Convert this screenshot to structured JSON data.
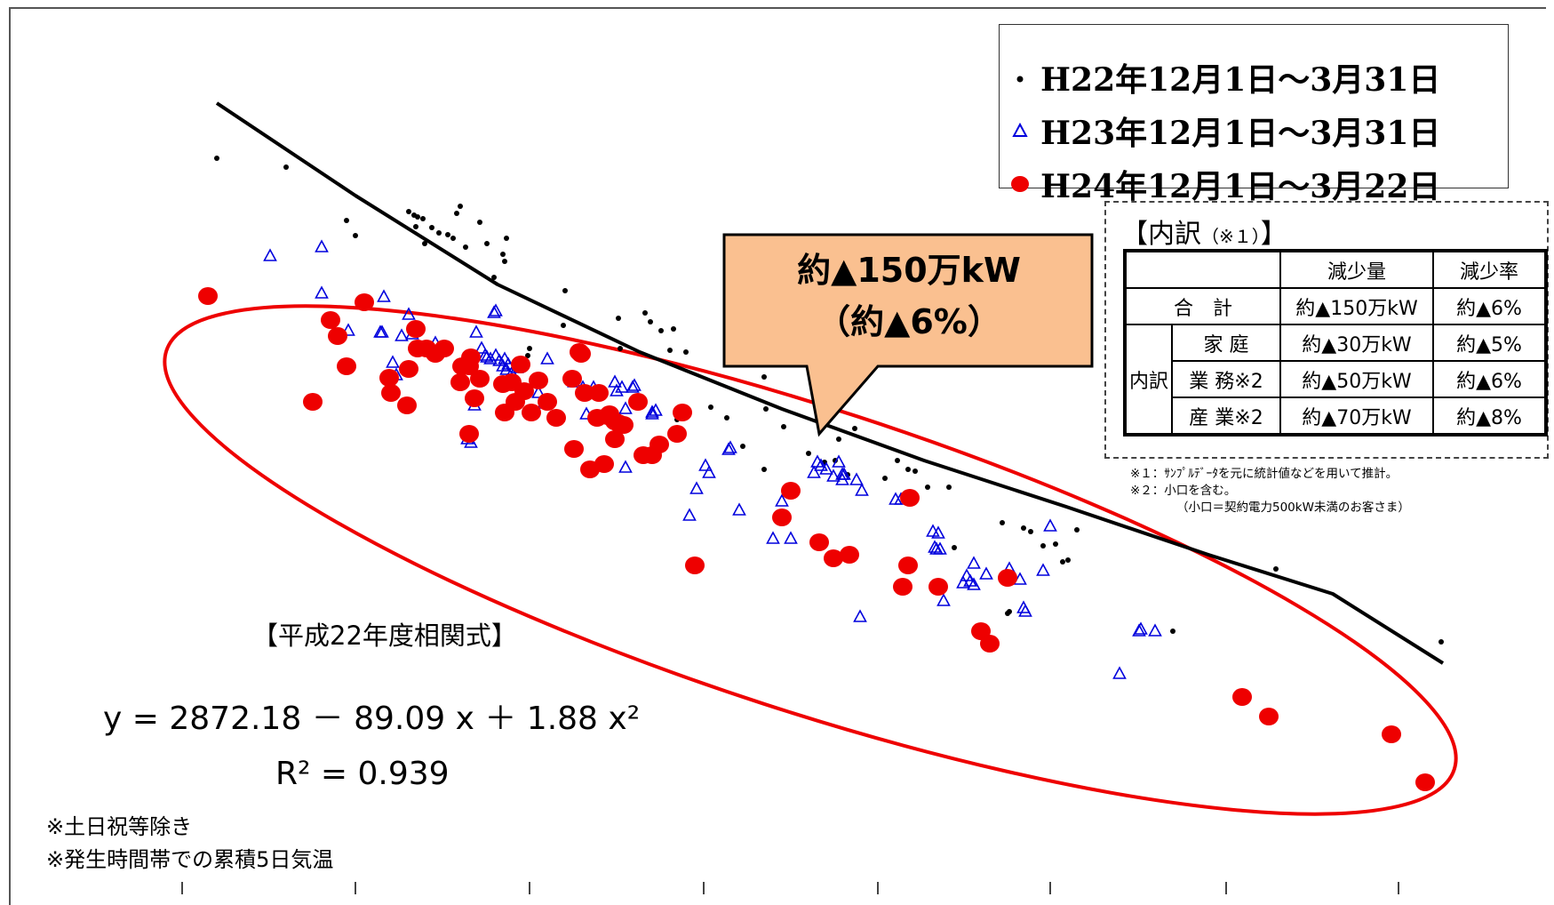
{
  "chart_data": {
    "type": "scatter",
    "title": "",
    "xlabel": "",
    "ylabel": "",
    "series": [
      {
        "name": "H22年12月1日～3月31日",
        "marker": "dot",
        "color": "#000000",
        "points": [
          [
            244,
            178
          ],
          [
            322,
            188
          ],
          [
            390,
            248
          ],
          [
            400,
            265
          ],
          [
            460,
            238
          ],
          [
            466,
            242
          ],
          [
            470,
            244
          ],
          [
            468,
            255
          ],
          [
            476,
            246
          ],
          [
            478,
            274
          ],
          [
            486,
            256
          ],
          [
            494,
            262
          ],
          [
            504,
            264
          ],
          [
            510,
            268
          ],
          [
            514,
            240
          ],
          [
            518,
            232
          ],
          [
            524,
            278
          ],
          [
            540,
            250
          ],
          [
            548,
            274
          ],
          [
            556,
            312
          ],
          [
            566,
            286
          ],
          [
            568,
            294
          ],
          [
            570,
            268
          ],
          [
            636,
            327
          ],
          [
            634,
            366
          ],
          [
            596,
            392
          ],
          [
            594,
            400
          ],
          [
            696,
            358
          ],
          [
            698,
            392
          ],
          [
            726,
            352
          ],
          [
            732,
            362
          ],
          [
            744,
            372
          ],
          [
            758,
            370
          ],
          [
            754,
            394
          ],
          [
            772,
            396
          ],
          [
            762,
            472
          ],
          [
            800,
            458
          ],
          [
            818,
            470
          ],
          [
            836,
            502
          ],
          [
            860,
            424
          ],
          [
            862,
            460
          ],
          [
            882,
            480
          ],
          [
            860,
            528
          ],
          [
            910,
            510
          ],
          [
            928,
            520
          ],
          [
            940,
            518
          ],
          [
            944,
            494
          ],
          [
            954,
            534
          ],
          [
            962,
            482
          ],
          [
            996,
            538
          ],
          [
            1010,
            518
          ],
          [
            1022,
            528
          ],
          [
            1030,
            530
          ],
          [
            1044,
            548
          ],
          [
            1068,
            548
          ],
          [
            1074,
            616
          ],
          [
            1128,
            588
          ],
          [
            1152,
            594
          ],
          [
            1160,
            598
          ],
          [
            1174,
            614
          ],
          [
            1188,
            612
          ],
          [
            1196,
            632
          ],
          [
            1202,
            630
          ],
          [
            1212,
            596
          ],
          [
            1134,
            690
          ],
          [
            1136,
            688
          ],
          [
            1320,
            710
          ],
          [
            1436,
            640
          ],
          [
            1622,
            722
          ]
        ]
      },
      {
        "name": "H23年12月1日～3月31日",
        "marker": "triangle",
        "color": "#0000dd",
        "points": [
          [
            304,
            288
          ],
          [
            362,
            278
          ],
          [
            362,
            330
          ],
          [
            392,
            372
          ],
          [
            428,
            374
          ],
          [
            432,
            334
          ],
          [
            430,
            374
          ],
          [
            452,
            378
          ],
          [
            460,
            354
          ],
          [
            442,
            408
          ],
          [
            446,
            422
          ],
          [
            464,
            376
          ],
          [
            490,
            386
          ],
          [
            536,
            374
          ],
          [
            542,
            392
          ],
          [
            546,
            400
          ],
          [
            548,
            402
          ],
          [
            552,
            404
          ],
          [
            558,
            400
          ],
          [
            562,
            406
          ],
          [
            568,
            404
          ],
          [
            572,
            410
          ],
          [
            566,
            412
          ],
          [
            558,
            350
          ],
          [
            556,
            352
          ],
          [
            616,
            404
          ],
          [
            612,
            454
          ],
          [
            606,
            442
          ],
          [
            534,
            456
          ],
          [
            526,
            494
          ],
          [
            530,
            498
          ],
          [
            570,
            416
          ],
          [
            576,
            420
          ],
          [
            582,
            414
          ],
          [
            646,
            430
          ],
          [
            656,
            436
          ],
          [
            660,
            466
          ],
          [
            668,
            436
          ],
          [
            692,
            430
          ],
          [
            694,
            440
          ],
          [
            700,
            436
          ],
          [
            704,
            460
          ],
          [
            704,
            526
          ],
          [
            714,
            434
          ],
          [
            712,
            436
          ],
          [
            734,
            466
          ],
          [
            734,
            464
          ],
          [
            738,
            462
          ],
          [
            776,
            580
          ],
          [
            784,
            550
          ],
          [
            794,
            524
          ],
          [
            798,
            532
          ],
          [
            820,
            506
          ],
          [
            822,
            504
          ],
          [
            832,
            574
          ],
          [
            880,
            564
          ],
          [
            870,
            606
          ],
          [
            890,
            606
          ],
          [
            920,
            520
          ],
          [
            924,
            524
          ],
          [
            916,
            532
          ],
          [
            930,
            528
          ],
          [
            944,
            520
          ],
          [
            938,
            536
          ],
          [
            948,
            534
          ],
          [
            950,
            534
          ],
          [
            964,
            540
          ],
          [
            970,
            552
          ],
          [
            948,
            540
          ],
          [
            968,
            694
          ],
          [
            1008,
            562
          ],
          [
            1014,
            562
          ],
          [
            1050,
            598
          ],
          [
            1054,
            618
          ],
          [
            1056,
            600
          ],
          [
            1058,
            618
          ],
          [
            1052,
            616
          ],
          [
            1062,
            676
          ],
          [
            1084,
            656
          ],
          [
            1088,
            648
          ],
          [
            1092,
            654
          ],
          [
            1096,
            658
          ],
          [
            1096,
            634
          ],
          [
            1110,
            646
          ],
          [
            1136,
            640
          ],
          [
            1148,
            652
          ],
          [
            1152,
            684
          ],
          [
            1154,
            688
          ],
          [
            1174,
            642
          ],
          [
            1182,
            592
          ],
          [
            1282,
            710
          ],
          [
            1284,
            708
          ],
          [
            1300,
            710
          ],
          [
            1260,
            758
          ]
        ]
      },
      {
        "name": "H24年12月1日～3月22日",
        "marker": "circle",
        "color": "#ee0000",
        "points": [
          [
            234,
            333
          ],
          [
            352,
            452
          ],
          [
            372,
            360
          ],
          [
            380,
            378
          ],
          [
            390,
            412
          ],
          [
            410,
            340
          ],
          [
            438,
            425
          ],
          [
            440,
            442
          ],
          [
            458,
            456
          ],
          [
            460,
            415
          ],
          [
            468,
            370
          ],
          [
            470,
            392
          ],
          [
            480,
            392
          ],
          [
            490,
            398
          ],
          [
            500,
            392
          ],
          [
            518,
            430
          ],
          [
            520,
            412
          ],
          [
            528,
            412
          ],
          [
            528,
            488
          ],
          [
            530,
            402
          ],
          [
            534,
            448
          ],
          [
            540,
            426
          ],
          [
            566,
            432
          ],
          [
            568,
            464
          ],
          [
            576,
            430
          ],
          [
            580,
            452
          ],
          [
            586,
            410
          ],
          [
            590,
            440
          ],
          [
            598,
            464
          ],
          [
            606,
            428
          ],
          [
            616,
            452
          ],
          [
            626,
            470
          ],
          [
            644,
            426
          ],
          [
            652,
            396
          ],
          [
            654,
            398
          ],
          [
            646,
            505
          ],
          [
            658,
            442
          ],
          [
            664,
            528
          ],
          [
            672,
            470
          ],
          [
            674,
            442
          ],
          [
            680,
            522
          ],
          [
            684,
            468
          ],
          [
            692,
            474
          ],
          [
            696,
            476
          ],
          [
            686,
            466
          ],
          [
            692,
            494
          ],
          [
            702,
            478
          ],
          [
            718,
            452
          ],
          [
            724,
            512
          ],
          [
            734,
            512
          ],
          [
            742,
            500
          ],
          [
            762,
            488
          ],
          [
            768,
            464
          ],
          [
            782,
            636
          ],
          [
            880,
            582
          ],
          [
            890,
            552
          ],
          [
            922,
            610
          ],
          [
            938,
            628
          ],
          [
            956,
            624
          ],
          [
            1016,
            660
          ],
          [
            1024,
            560
          ],
          [
            1022,
            636
          ],
          [
            1056,
            660
          ],
          [
            1104,
            710
          ],
          [
            1114,
            724
          ],
          [
            1134,
            650
          ],
          [
            1398,
            784
          ],
          [
            1428,
            806
          ],
          [
            1566,
            826
          ],
          [
            1604,
            880
          ]
        ]
      }
    ],
    "trendline": {
      "name": "平成22年度相関式",
      "equation": "y = 2872.18 − 89.09 x + 1.88 x²",
      "r2": "R² = 0.939",
      "color": "#000000",
      "points": [
        [
          244,
          116
        ],
        [
          400,
          220
        ],
        [
          560,
          320
        ],
        [
          720,
          396
        ],
        [
          880,
          460
        ],
        [
          1040,
          518
        ],
        [
          1200,
          570
        ],
        [
          1360,
          624
        ],
        [
          1500,
          668
        ],
        [
          1624,
          746
        ]
      ]
    },
    "highlight_ellipse": {
      "cx": 912,
      "cy": 630,
      "rx": 762,
      "ry": 170,
      "rotation_deg": 18,
      "color": "#ee0000"
    },
    "x_ticks": [
      205,
      400,
      596,
      792,
      988,
      1182,
      1380,
      1574
    ],
    "grid": false,
    "legend_position": "top-right",
    "x_range": [
      200,
      1700
    ],
    "y_range": [
      100,
      1000
    ]
  },
  "legend": {
    "items": [
      {
        "label": "H22年12月1日～3月31日",
        "marker": "dot",
        "color": "#000000"
      },
      {
        "label": "H23年12月1日～3月31日",
        "marker": "triangle",
        "color": "#0000dd"
      },
      {
        "label": "H24年12月1日～3月22日",
        "marker": "circle",
        "color": "#ee0000"
      }
    ]
  },
  "callout": {
    "line1": "約▲150万kW",
    "line2": "（約▲6%）",
    "fill": "#fac090"
  },
  "breakdown": {
    "title": "【内訳",
    "title_note": "（※１）",
    "title_end": "】",
    "header_amount": "減少量",
    "header_rate": "減少率",
    "total_label": "合　計",
    "total_amount": "約▲150万kW",
    "total_rate": "約▲6%",
    "group_label": "内訳",
    "rows": [
      {
        "label": "家 庭",
        "amount": "約▲30万kW",
        "rate": "約▲5%"
      },
      {
        "label": "業 務※2",
        "amount": "約▲50万kW",
        "rate": "約▲6%"
      },
      {
        "label": "産 業※2",
        "amount": "約▲70万kW",
        "rate": "約▲8%"
      }
    ],
    "note1": "※１：ｻﾝﾌﾟﾙﾃﾞｰﾀを元に統計値などを用いて推計。",
    "note2": "※２：小口を含む。",
    "note3": "（小口＝契約電力500kW未満のお客さま）"
  },
  "equation_block": {
    "title": "【平成22年度相関式】",
    "equation": "y = 2872.18 － 89.09 x ＋ 1.88 x²",
    "r2": "R² = 0.939"
  },
  "footnotes": {
    "line1": "※土日祝等除き",
    "line2": "※発生時間帯での累積5日気温"
  }
}
